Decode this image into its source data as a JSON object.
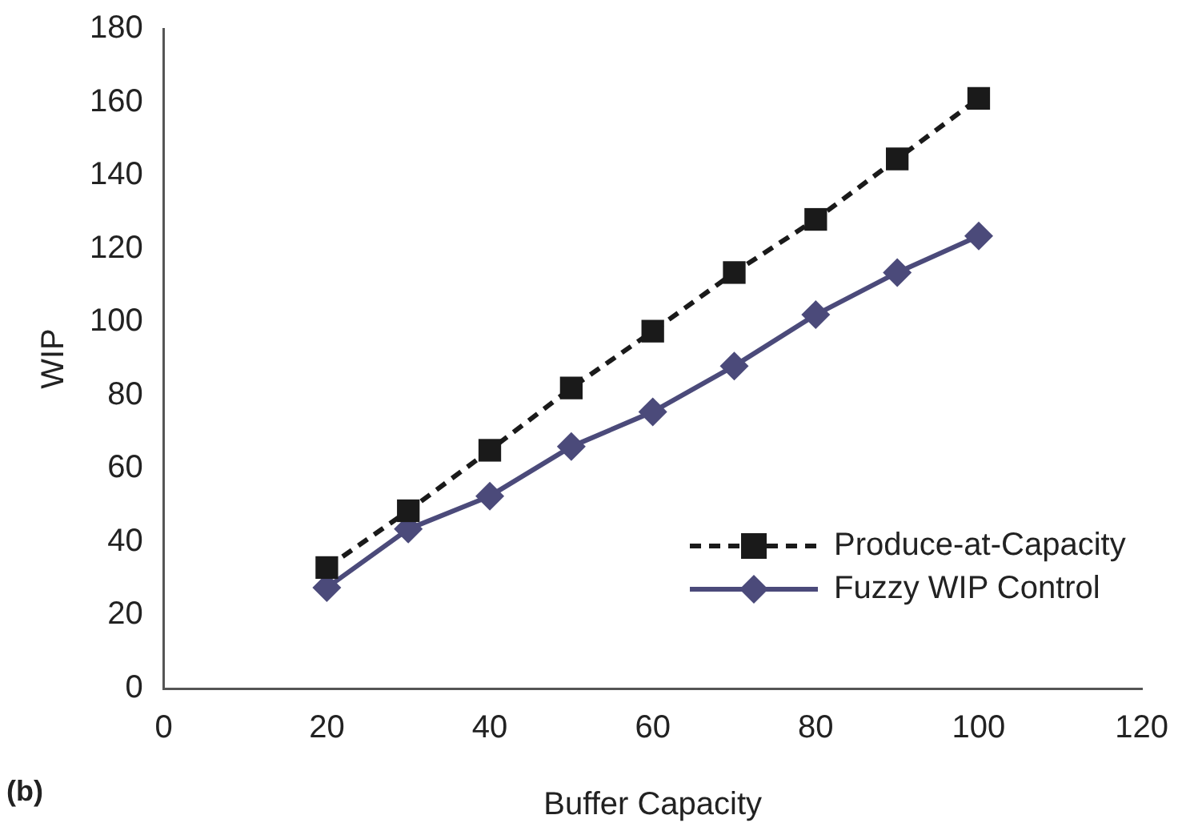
{
  "chart_data": {
    "type": "line",
    "xlabel": "Buffer Capacity",
    "ylabel": "WIP",
    "annotations": [
      "(b)"
    ],
    "x": [
      20,
      30,
      40,
      50,
      60,
      70,
      80,
      90,
      100
    ],
    "series": [
      {
        "name": "Produce-at-Capacity",
        "color": "#1a1a1a",
        "marker": "square",
        "line_style": "dashed",
        "values": [
          33,
          48.5,
          65,
          82,
          97.5,
          113.5,
          128,
          144.5,
          161
        ]
      },
      {
        "name": "Fuzzy WIP Control",
        "color": "#4b4a7a",
        "marker": "diamond",
        "line_style": "solid",
        "values": [
          27.5,
          43.5,
          52.5,
          66,
          75.5,
          88,
          102,
          113.5,
          123.5
        ]
      }
    ],
    "xlim": [
      0,
      120
    ],
    "xticks": [
      0,
      20,
      40,
      60,
      80,
      100,
      120
    ],
    "ylim": [
      0,
      180
    ],
    "yticks": [
      0,
      20,
      40,
      60,
      80,
      100,
      120,
      140,
      160,
      180
    ],
    "grid": false,
    "legend": "bottom right"
  }
}
